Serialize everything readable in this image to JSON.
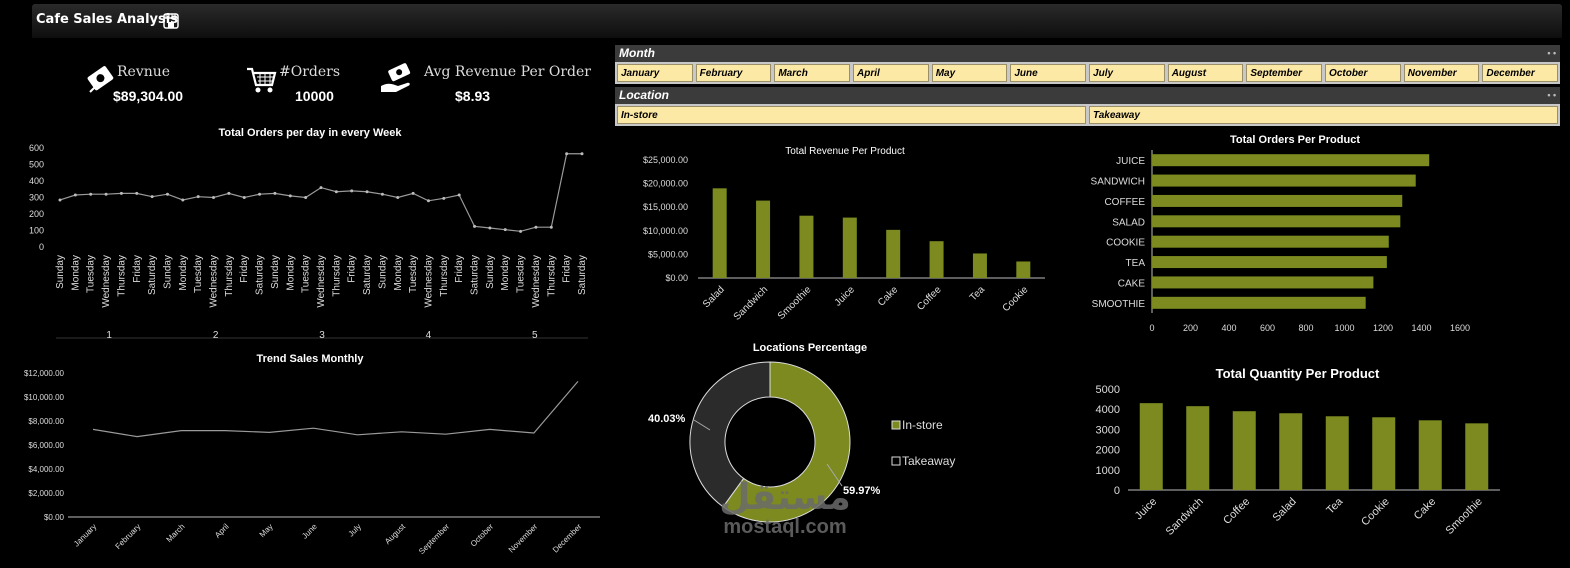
{
  "app": {
    "title": "Cafe Sales Analysis",
    "title_icon": "store-icon"
  },
  "kpis": [
    {
      "label": "Revnue",
      "value": "$89,304.00",
      "icon": "money-icon"
    },
    {
      "label": "#Orders",
      "value": "10000",
      "icon": "cart-icon"
    },
    {
      "label": "Avg Revenue Per Order",
      "value": "$8.93",
      "icon": "hand-money-icon"
    }
  ],
  "slicers": {
    "month": {
      "title": "Month",
      "items": [
        "January",
        "February",
        "March",
        "April",
        "May",
        "June",
        "July",
        "August",
        "September",
        "October",
        "November",
        "December"
      ]
    },
    "location": {
      "title": "Location",
      "items": [
        "In-store",
        "Takeaway"
      ]
    }
  },
  "colors": {
    "bar": "#7c8a20",
    "line": "#9a9a9a",
    "donut_dark": "#2b2b2b",
    "slicer_chip": "#fde9a6"
  },
  "watermark": {
    "arabic": "مستقل",
    "latin": "mostaql.com"
  },
  "chart_data": [
    {
      "id": "orders_week",
      "type": "line",
      "title": "Total Orders per day in every Week",
      "days": [
        "Sunday",
        "Monday",
        "Tuesday",
        "Wednesday",
        "Thursday",
        "Friday",
        "Saturday",
        "Sunday",
        "Monday",
        "Tuesday",
        "Wednesday",
        "Thursday",
        "Friday",
        "Saturday",
        "Sunday",
        "Monday",
        "Tuesday",
        "Wednesday",
        "Thursday",
        "Friday",
        "Saturday",
        "Sunday",
        "Monday",
        "Tuesday",
        "Wednesday",
        "Thursday",
        "Friday",
        "Saturday",
        "Sunday",
        "Monday",
        "Tuesday",
        "Wednesday",
        "Thursday",
        "Friday",
        "Saturday"
      ],
      "weeks": [
        "1",
        "2",
        "3",
        "4",
        "5"
      ],
      "values": [
        285,
        315,
        320,
        320,
        325,
        325,
        305,
        320,
        285,
        305,
        300,
        325,
        300,
        320,
        325,
        310,
        300,
        360,
        335,
        340,
        335,
        320,
        300,
        325,
        280,
        295,
        315,
        125,
        115,
        105,
        95,
        120,
        120,
        565,
        565
      ],
      "yticks": [
        "0",
        "100",
        "200",
        "300",
        "400",
        "500",
        "600"
      ],
      "ylim": [
        0,
        600
      ]
    },
    {
      "id": "trend_monthly",
      "type": "line",
      "title": "Trend Sales Monthly",
      "categories": [
        "January",
        "February",
        "March",
        "April",
        "May",
        "June",
        "July",
        "August",
        "September",
        "October",
        "November",
        "December"
      ],
      "values": [
        7300,
        6700,
        7200,
        7200,
        7050,
        7400,
        6850,
        7100,
        6900,
        7300,
        7000,
        11300
      ],
      "yticks": [
        "$0.00",
        "$2,000.00",
        "$4,000.00",
        "$6,000.00",
        "$8,000.00",
        "$10,000.00",
        "$12,000.00"
      ],
      "ylim": [
        0,
        12000
      ]
    },
    {
      "id": "revenue_product",
      "type": "bar",
      "title": "Total Revenue Per Product",
      "categories": [
        "Salad",
        "Sandwich",
        "Smoothie",
        "Juice",
        "Cake",
        "Coffee",
        "Tea",
        "Cookie"
      ],
      "values": [
        19000,
        16400,
        13200,
        12800,
        10200,
        7800,
        5200,
        3500
      ],
      "yticks": [
        "$0.00",
        "$5,000.00",
        "$10,000.00",
        "$15,000.00",
        "$20,000.00",
        "$25,000.00"
      ],
      "ylim": [
        0,
        25000
      ]
    },
    {
      "id": "orders_product",
      "type": "bar",
      "orientation": "horizontal",
      "title": "Total Orders Per Product",
      "categories": [
        "JUICE",
        "SANDWICH",
        "COFFEE",
        "SALAD",
        "COOKIE",
        "TEA",
        "CAKE",
        "SMOOTHIE"
      ],
      "values": [
        1440,
        1370,
        1300,
        1290,
        1230,
        1220,
        1150,
        1110
      ],
      "xticks": [
        "0",
        "200",
        "400",
        "600",
        "800",
        "1000",
        "1200",
        "1400",
        "1600"
      ],
      "xlim": [
        0,
        1600
      ]
    },
    {
      "id": "locations",
      "type": "pie",
      "title": "Locations Percentage",
      "labels": [
        "In-store",
        "Takeaway"
      ],
      "values": [
        59.97,
        40.03
      ],
      "value_labels": [
        "59.97%",
        "40.03%"
      ],
      "legend": "right"
    },
    {
      "id": "quantity_product",
      "type": "bar",
      "title": "Total Quantity Per Product",
      "categories": [
        "Juice",
        "Sandwich",
        "Coffee",
        "Salad",
        "Tea",
        "Cookie",
        "Cake",
        "Smoothie"
      ],
      "values": [
        4300,
        4150,
        3900,
        3800,
        3650,
        3600,
        3450,
        3300
      ],
      "yticks": [
        "0",
        "1000",
        "2000",
        "3000",
        "4000",
        "5000"
      ],
      "ylim": [
        0,
        5000
      ]
    }
  ]
}
